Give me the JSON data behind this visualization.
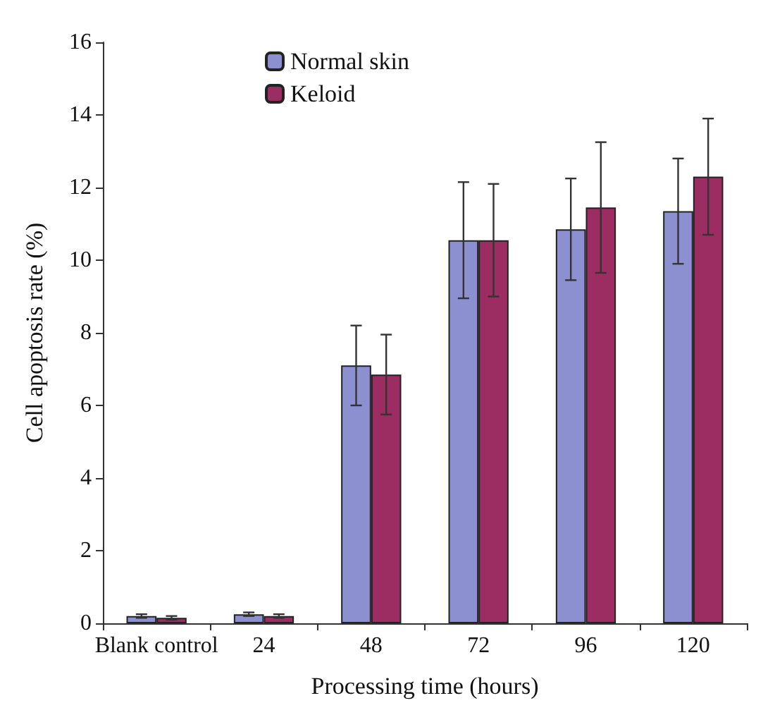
{
  "chart_data": {
    "type": "bar",
    "xlabel": "Processing time (hours)",
    "ylabel": "Cell apoptosis rate (%)",
    "categories": [
      "Blank control",
      "24",
      "48",
      "72",
      "96",
      "120"
    ],
    "series": [
      {
        "name": "Normal skin",
        "color": "#8c8fd0",
        "values": [
          0.2,
          0.25,
          7.1,
          10.55,
          10.85,
          11.35
        ],
        "errors": [
          0.05,
          0.05,
          1.1,
          1.6,
          1.4,
          1.45
        ]
      },
      {
        "name": "Keloid",
        "color": "#9b2d62",
        "values": [
          0.15,
          0.2,
          6.85,
          10.55,
          11.45,
          12.3
        ],
        "errors": [
          0.05,
          0.05,
          1.1,
          1.55,
          1.8,
          1.6
        ]
      }
    ],
    "ylim": [
      0,
      16
    ],
    "yticks": [
      0,
      2,
      4,
      6,
      8,
      10,
      12,
      14,
      16
    ],
    "grid": false,
    "legend": "top left"
  }
}
